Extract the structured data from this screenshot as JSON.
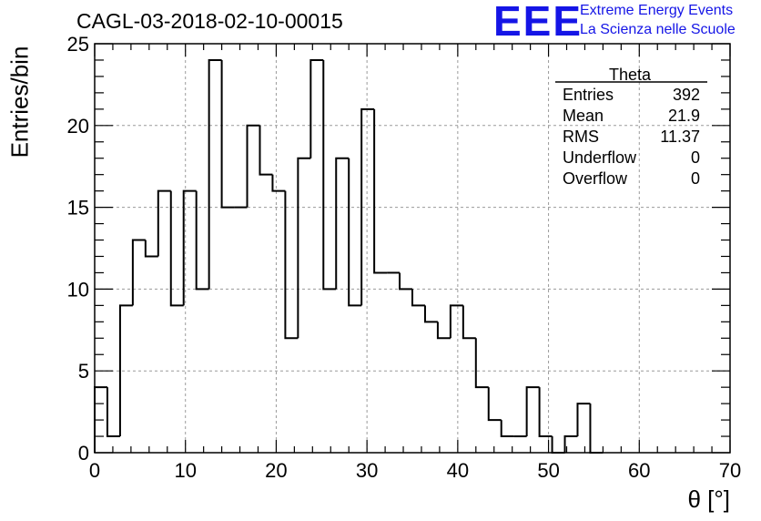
{
  "header": {
    "title": "CAGL-03-2018-02-10-00015",
    "logo_text": "EEE",
    "logo_line1": "Extreme Energy Events",
    "logo_line2": "La Scienza nelle Scuole"
  },
  "stats_box": {
    "title": "Theta",
    "rows": [
      {
        "label": "Entries",
        "value": "392"
      },
      {
        "label": "Mean",
        "value": "21.9"
      },
      {
        "label": "RMS",
        "value": "11.37"
      },
      {
        "label": "Underflow",
        "value": "0"
      },
      {
        "label": "Overflow",
        "value": "0"
      }
    ]
  },
  "chart_data": {
    "type": "bar",
    "subtype": "step-histogram",
    "title": "CAGL-03-2018-02-10-00015",
    "xlabel": "θ [°]",
    "ylabel": "Entries/bin",
    "xlim": [
      0,
      70
    ],
    "ylim": [
      0,
      25
    ],
    "bin_width": 1.4,
    "bin_edges_start": 0,
    "values": [
      4,
      1,
      9,
      13,
      12,
      16,
      9,
      16,
      10,
      24,
      15,
      15,
      20,
      17,
      16,
      7,
      18,
      24,
      10,
      18,
      9,
      21,
      11,
      11,
      10,
      9,
      8,
      7,
      9,
      7,
      4,
      2,
      1,
      1,
      4,
      1,
      0,
      1,
      3,
      0
    ],
    "x_ticks": [
      "0",
      "10",
      "20",
      "30",
      "40",
      "50",
      "60",
      "70"
    ],
    "y_ticks": [
      "0",
      "5",
      "10",
      "15",
      "20",
      "25"
    ],
    "grid": true,
    "line_color": "#000000",
    "grid_color": "#9a9a9a"
  },
  "colors": {
    "logo": "#1515e6",
    "text": "#000000"
  }
}
